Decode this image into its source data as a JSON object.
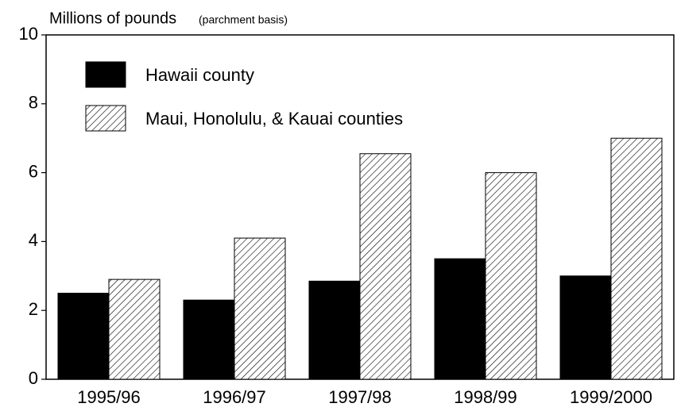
{
  "chart_data": {
    "type": "bar",
    "ylabel": "Millions of pounds",
    "ylabel_note": "(parchment basis)",
    "categories": [
      "1995/96",
      "1996/97",
      "1997/98",
      "1998/99",
      "1999/2000"
    ],
    "series": [
      {
        "name": "Hawaii county",
        "color": "#000000",
        "pattern": "solid",
        "values": [
          2.5,
          2.3,
          2.85,
          3.5,
          3.0
        ]
      },
      {
        "name": "Maui, Honolulu, & Kauai counties",
        "color": "#000000",
        "pattern": "hatch",
        "values": [
          2.9,
          4.1,
          6.55,
          6.0,
          7.0
        ]
      }
    ],
    "ylim": [
      0,
      10
    ],
    "yticks": [
      0,
      2,
      4,
      6,
      8,
      10
    ],
    "legend": "upper left"
  }
}
